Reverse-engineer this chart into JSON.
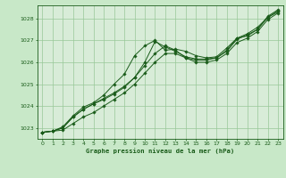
{
  "background_color": "#c8e8c8",
  "plot_bg_color": "#d8ecd8",
  "grid_color": "#98c898",
  "line_color": "#1a5c1a",
  "marker_color": "#1a5c1a",
  "title": "Graphe pression niveau de la mer (hPa)",
  "xlim": [
    -0.5,
    23.5
  ],
  "ylim": [
    1022.5,
    1028.6
  ],
  "yticks": [
    1023,
    1024,
    1025,
    1026,
    1027,
    1028
  ],
  "xticks": [
    0,
    1,
    2,
    3,
    4,
    5,
    6,
    7,
    8,
    9,
    10,
    11,
    12,
    13,
    14,
    15,
    16,
    17,
    18,
    19,
    20,
    21,
    22,
    23
  ],
  "series": [
    [
      1022.8,
      1022.85,
      1023.0,
      1023.5,
      1023.85,
      1024.1,
      1024.3,
      1024.55,
      1024.85,
      1025.3,
      1025.85,
      1026.4,
      1026.75,
      1026.55,
      1026.2,
      1026.1,
      1026.1,
      1026.2,
      1026.55,
      1027.1,
      1027.2,
      1027.5,
      1028.05,
      1028.35
    ],
    [
      1022.8,
      1022.85,
      1023.05,
      1023.55,
      1023.95,
      1024.15,
      1024.5,
      1025.0,
      1025.45,
      1026.3,
      1026.75,
      1027.0,
      1026.55,
      1026.6,
      1026.5,
      1026.3,
      1026.2,
      1026.25,
      1026.65,
      1027.1,
      1027.3,
      1027.6,
      1028.05,
      1028.3
    ],
    [
      1022.8,
      1022.85,
      1023.0,
      1023.5,
      1023.85,
      1024.1,
      1024.35,
      1024.6,
      1024.9,
      1025.3,
      1026.0,
      1026.95,
      1026.7,
      1026.5,
      1026.25,
      1026.15,
      1026.15,
      1026.2,
      1026.5,
      1027.05,
      1027.25,
      1027.5,
      1028.1,
      1028.4
    ],
    [
      1022.8,
      1022.85,
      1022.9,
      1023.2,
      1023.5,
      1023.7,
      1024.0,
      1024.3,
      1024.6,
      1025.0,
      1025.5,
      1026.0,
      1026.4,
      1026.4,
      1026.2,
      1026.0,
      1026.0,
      1026.1,
      1026.4,
      1026.9,
      1027.1,
      1027.4,
      1027.95,
      1028.25
    ]
  ]
}
